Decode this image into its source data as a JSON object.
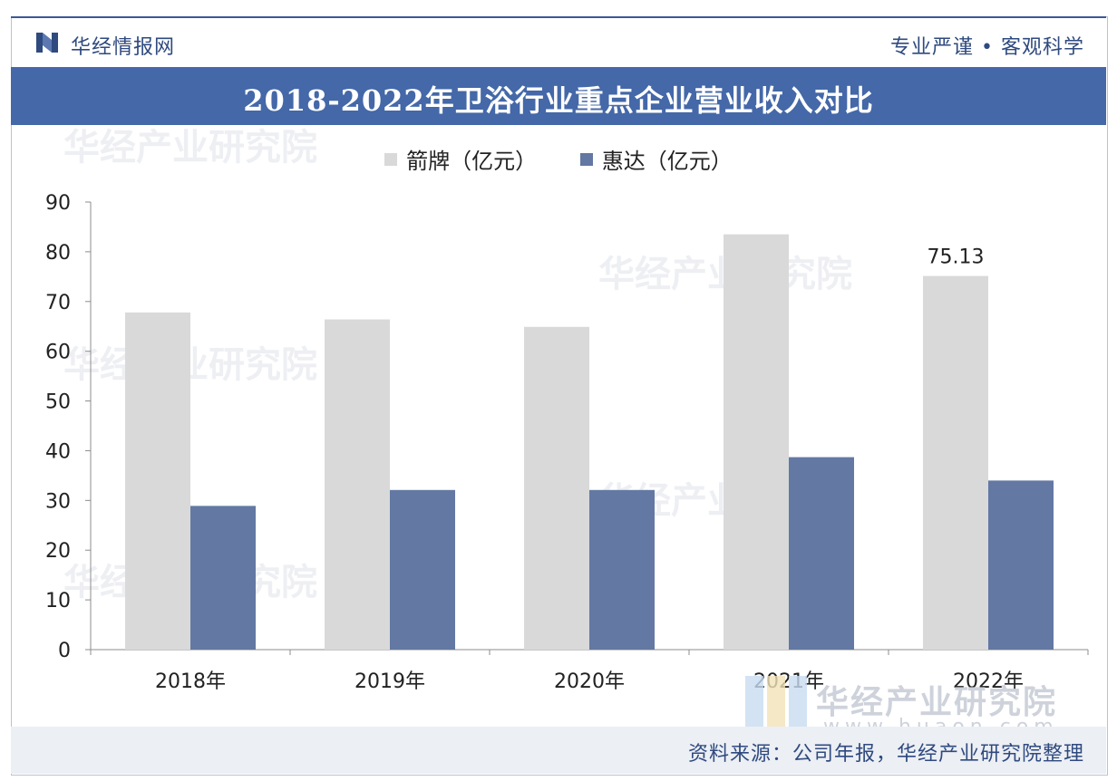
{
  "header": {
    "brand": "华经情报网",
    "slogan": "专业严谨 • 客观科学"
  },
  "title": "2018-2022年卫浴行业重点企业营业收入对比",
  "footer": {
    "source": "资料来源：公司年报，华经产业研究院整理"
  },
  "watermark": {
    "text": "华经产业研究院",
    "url": "www.huaon.com"
  },
  "colors": {
    "brand_blue": "#4468a8",
    "series1": "#d9d9d9",
    "series2": "#6378a3"
  },
  "chart_data": {
    "type": "bar",
    "categories": [
      "2018年",
      "2019年",
      "2020年",
      "2021年",
      "2022年"
    ],
    "series": [
      {
        "name": "箭牌（亿元）",
        "values": [
          67.8,
          66.4,
          64.9,
          83.5,
          75.13
        ]
      },
      {
        "name": "惠达（亿元）",
        "values": [
          28.9,
          32.1,
          32.1,
          38.7,
          34.0
        ]
      }
    ],
    "annotations": [
      {
        "series": 0,
        "category": "2022年",
        "label": "75.13"
      }
    ],
    "ylim": [
      0,
      90
    ],
    "yticks": [
      0,
      10,
      20,
      30,
      40,
      50,
      60,
      70,
      80,
      90
    ],
    "grid": false,
    "legend": "top-center"
  }
}
